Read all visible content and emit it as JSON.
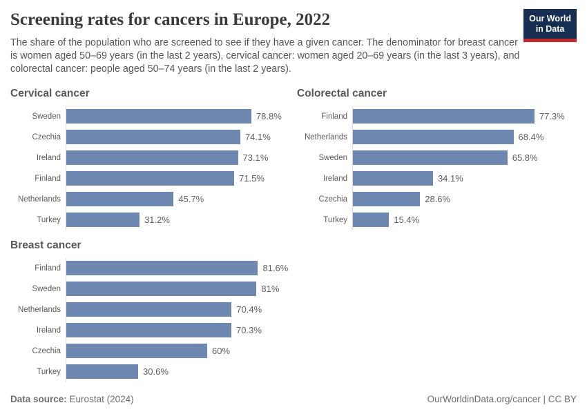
{
  "header": {
    "title": "Screening rates for cancers in Europe, 2022",
    "subtitle": "The share of the population who are screened to see if they have a given cancer. The denominator for breast cancer is women aged 50–69 years (in the last 2 years), cervical cancer: women aged 20–69 years (in the last 3 years), and colorectal cancer: people aged 50–74 years (in the last 2 years).",
    "logo": {
      "line1": "Our World",
      "line2": "in Data"
    }
  },
  "chart_data": [
    {
      "type": "bar",
      "orientation": "horizontal",
      "title": "Cervical cancer",
      "categories": [
        "Sweden",
        "Czechia",
        "Ireland",
        "Finland",
        "Netherlands",
        "Turkey"
      ],
      "values": [
        78.8,
        74.1,
        73.1,
        71.5,
        45.7,
        31.2
      ],
      "value_labels": [
        "78.8%",
        "74.1%",
        "73.1%",
        "71.5%",
        "45.7%",
        "31.2%"
      ],
      "unit": "%",
      "xlim": [
        0,
        100
      ],
      "grid": false,
      "legend": false
    },
    {
      "type": "bar",
      "orientation": "horizontal",
      "title": "Colorectal cancer",
      "categories": [
        "Finland",
        "Netherlands",
        "Sweden",
        "Ireland",
        "Czechia",
        "Turkey"
      ],
      "values": [
        77.3,
        68.4,
        65.8,
        34.1,
        28.6,
        15.4
      ],
      "value_labels": [
        "77.3%",
        "68.4%",
        "65.8%",
        "34.1%",
        "28.6%",
        "15.4%"
      ],
      "unit": "%",
      "xlim": [
        0,
        100
      ],
      "grid": false,
      "legend": false
    },
    {
      "type": "bar",
      "orientation": "horizontal",
      "title": "Breast cancer",
      "categories": [
        "Finland",
        "Sweden",
        "Netherlands",
        "Ireland",
        "Czechia",
        "Turkey"
      ],
      "values": [
        81.6,
        81,
        70.4,
        70.3,
        60,
        30.6
      ],
      "value_labels": [
        "81.6%",
        "81%",
        "70.4%",
        "70.3%",
        "60%",
        "30.6%"
      ],
      "unit": "%",
      "xlim": [
        0,
        100
      ],
      "grid": false,
      "legend": false
    }
  ],
  "footer": {
    "datasource_label": "Data source:",
    "datasource_value": "Eurostat (2024)",
    "credit": "OurWorldinData.org/cancer | CC BY"
  },
  "colors": {
    "bar": "#6f88b1",
    "axis_line": "#dadada",
    "logo_navy": "#152e52",
    "logo_red": "#c0272d"
  }
}
